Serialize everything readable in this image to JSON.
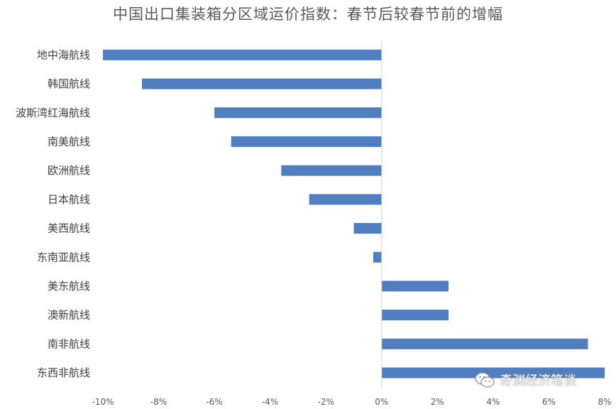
{
  "chart_data": {
    "type": "bar",
    "orientation": "horizontal",
    "title": "中国出口集装箱分区域运价指数：春节后较春节前的增幅",
    "categories": [
      "地中海航线",
      "韩国航线",
      "波斯湾红海航线",
      "南美航线",
      "欧洲航线",
      "日本航线",
      "美西航线",
      "东南亚航线",
      "美东航线",
      "澳新航线",
      "南非航线",
      "东西非航线"
    ],
    "values": [
      -10.0,
      -8.6,
      -6.0,
      -5.4,
      -3.6,
      -2.6,
      -1.0,
      -0.3,
      2.4,
      2.4,
      7.4,
      8.0
    ],
    "xlim": [
      -10,
      8
    ],
    "xticks": [
      -10,
      -8,
      -6,
      -4,
      -2,
      0,
      2,
      4,
      6,
      8
    ],
    "xtick_labels": [
      "-10%",
      "-8%",
      "-6%",
      "-4%",
      "-2%",
      "0%",
      "2%",
      "4%",
      "6%",
      "8%"
    ],
    "series_color": "#4f7fc0",
    "grid": false,
    "legend": "none"
  },
  "watermark": {
    "text": "奇渊经济笔谈",
    "icon": "wechat-icon"
  }
}
